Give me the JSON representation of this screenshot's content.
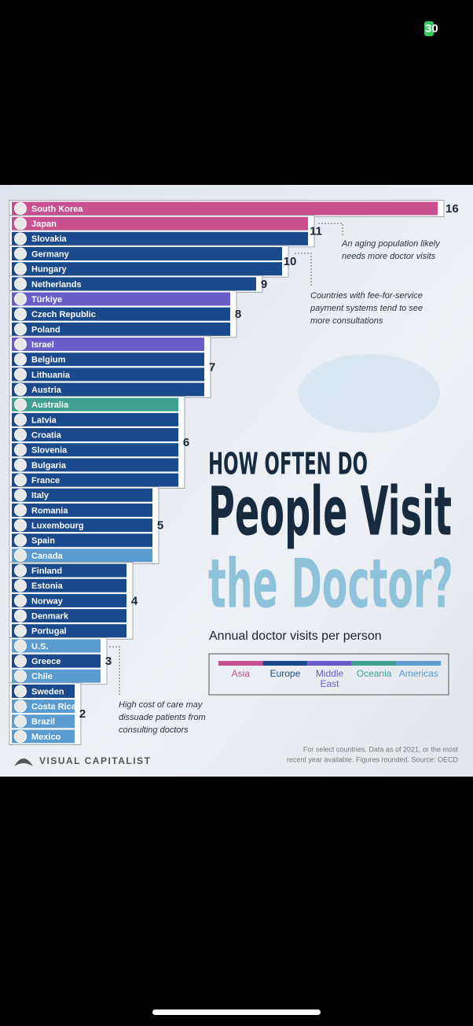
{
  "status_bar": {
    "battery": "30"
  },
  "chart_data": {
    "type": "bar",
    "orientation": "horizontal",
    "title_lines": [
      "HOW OFTEN DO",
      "People Visit",
      "the Doctor?"
    ],
    "subtitle": "Annual doctor visits per person",
    "legend": [
      {
        "name": "Asia",
        "color": "#c8508e"
      },
      {
        "name": "Europe",
        "color": "#1b4a8c"
      },
      {
        "name": "Middle East",
        "color": "#6a5cc8"
      },
      {
        "name": "Oceania",
        "color": "#3fa08f"
      },
      {
        "name": "Americas",
        "color": "#5a9bd0"
      }
    ],
    "groups": [
      {
        "value": 16,
        "countries": [
          {
            "name": "South Korea",
            "region": "Asia"
          }
        ]
      },
      {
        "value": 11,
        "countries": [
          {
            "name": "Japan",
            "region": "Asia"
          },
          {
            "name": "Slovakia",
            "region": "Europe"
          }
        ]
      },
      {
        "value": 10,
        "countries": [
          {
            "name": "Germany",
            "region": "Europe"
          },
          {
            "name": "Hungary",
            "region": "Europe"
          }
        ]
      },
      {
        "value": 9,
        "countries": [
          {
            "name": "Netherlands",
            "region": "Europe"
          }
        ]
      },
      {
        "value": 8,
        "countries": [
          {
            "name": "Türkiye",
            "region": "Middle East"
          },
          {
            "name": "Czech Republic",
            "region": "Europe"
          },
          {
            "name": "Poland",
            "region": "Europe"
          }
        ]
      },
      {
        "value": 7,
        "countries": [
          {
            "name": "Israel",
            "region": "Middle East"
          },
          {
            "name": "Belgium",
            "region": "Europe"
          },
          {
            "name": "Lithuania",
            "region": "Europe"
          },
          {
            "name": "Austria",
            "region": "Europe"
          }
        ]
      },
      {
        "value": 6,
        "countries": [
          {
            "name": "Australia",
            "region": "Oceania"
          },
          {
            "name": "Latvia",
            "region": "Europe"
          },
          {
            "name": "Croatia",
            "region": "Europe"
          },
          {
            "name": "Slovenia",
            "region": "Europe"
          },
          {
            "name": "Bulgaria",
            "region": "Europe"
          },
          {
            "name": "France",
            "region": "Europe"
          }
        ]
      },
      {
        "value": 5,
        "countries": [
          {
            "name": "Italy",
            "region": "Europe"
          },
          {
            "name": "Romania",
            "region": "Europe"
          },
          {
            "name": "Luxembourg",
            "region": "Europe"
          },
          {
            "name": "Spain",
            "region": "Europe"
          },
          {
            "name": "Canada",
            "region": "Americas"
          }
        ]
      },
      {
        "value": 4,
        "countries": [
          {
            "name": "Finland",
            "region": "Europe"
          },
          {
            "name": "Estonia",
            "region": "Europe"
          },
          {
            "name": "Norway",
            "region": "Europe"
          },
          {
            "name": "Denmark",
            "region": "Europe"
          },
          {
            "name": "Portugal",
            "region": "Europe"
          }
        ]
      },
      {
        "value": 3,
        "countries": [
          {
            "name": "U.S.",
            "region": "Americas"
          },
          {
            "name": "Greece",
            "region": "Europe"
          },
          {
            "name": "Chile",
            "region": "Americas"
          }
        ]
      },
      {
        "value": 2,
        "countries": [
          {
            "name": "Sweden",
            "region": "Europe"
          },
          {
            "name": "Costa Rica",
            "region": "Americas"
          },
          {
            "name": "Brazil",
            "region": "Americas"
          },
          {
            "name": "Mexico",
            "region": "Americas"
          }
        ]
      }
    ],
    "annotations": [
      [
        "An aging population likely",
        "needs more doctor visits"
      ],
      [
        "Countries with fee-for-service",
        "payment systems tend to see",
        "more consultations"
      ],
      [
        "High cost of care may",
        "dissuade patients from",
        "consulting doctors"
      ]
    ],
    "footer_lines": [
      "For select countries.  Data as of 2021, or the most",
      "recent year available. Figures rounded. Source: OECD"
    ],
    "brand": "VISUAL CAPITALIST"
  }
}
